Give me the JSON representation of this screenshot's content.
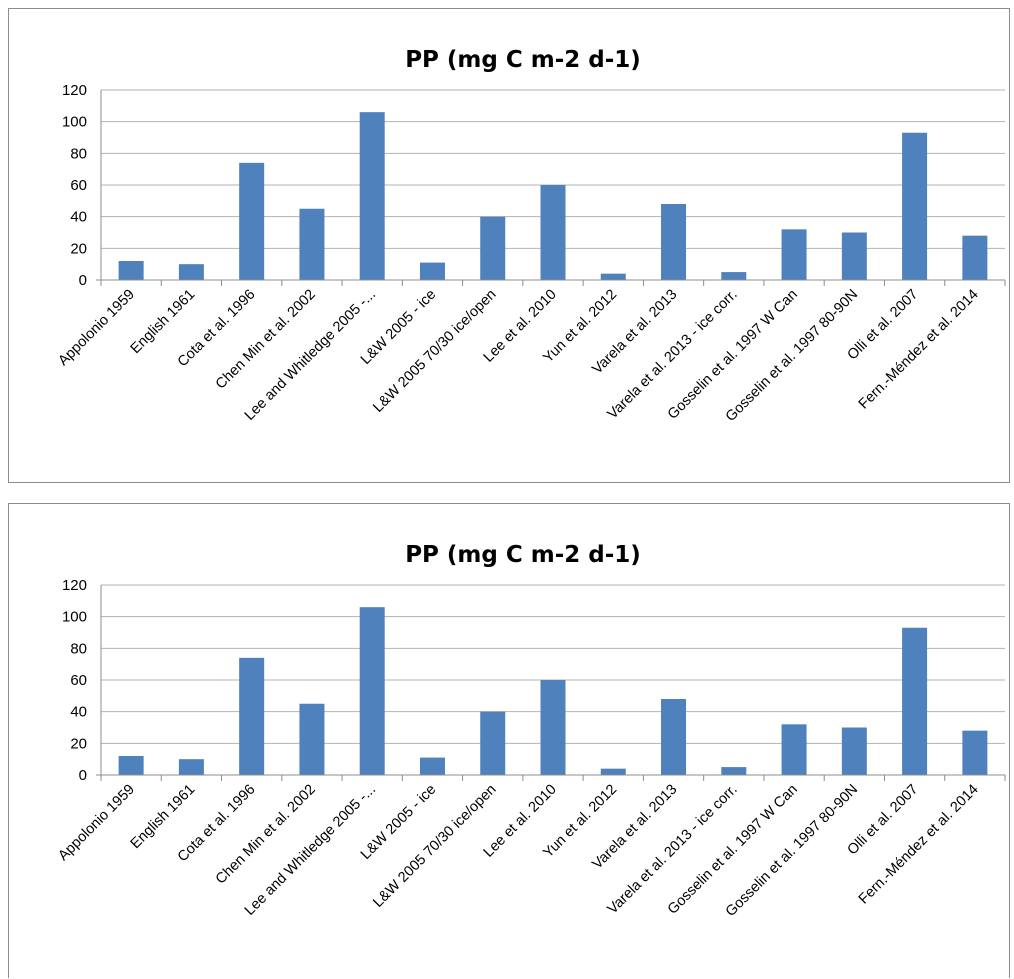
{
  "chart_data": [
    {
      "type": "bar",
      "title": "PP (mg C m-2 d-1)",
      "categories": [
        "Appolonio 1959",
        "English 1961",
        "Cota et al. 1996",
        "Chen Min et al. 2002",
        "Lee and Whitledge 2005 -...",
        "L&W 2005 - ice",
        "L&W 2005 70/30 ice/open",
        "Lee et al. 2010",
        "Yun et al. 2012",
        "Varela et al. 2013",
        "Varela et al. 2013 - ice corr.",
        "Gosselin et al. 1997 W Can",
        "Gosselin et al. 1997 80-90N",
        "Olli et al. 2007",
        "Fern.-Méndez et al. 2014"
      ],
      "values": [
        12,
        10,
        74,
        45,
        106,
        11,
        40,
        60,
        4,
        48,
        5,
        32,
        30,
        93,
        28
      ],
      "yticks": [
        0,
        20,
        40,
        60,
        80,
        100,
        120
      ],
      "ylim": [
        0,
        120
      ],
      "grid": true,
      "bar_color": "#4f81bd"
    },
    {
      "type": "bar",
      "title": "PP (mg C m-2 d-1)",
      "categories": [
        "Appolonio 1959",
        "English 1961",
        "Cota et al. 1996",
        "Chen Min et al. 2002",
        "Lee and Whitledge 2005 -...",
        "L&W 2005 - ice",
        "L&W 2005 70/30 ice/open",
        "Lee et al. 2010",
        "Yun et al. 2012",
        "Varela et al. 2013",
        "Varela et al. 2013 - ice corr.",
        "Gosselin et al. 1997 W Can",
        "Gosselin et al. 1997 80-90N",
        "Olli et al. 2007",
        "Fern.-Méndez et al. 2014"
      ],
      "values": [
        12,
        10,
        74,
        45,
        106,
        11,
        40,
        60,
        4,
        48,
        5,
        32,
        30,
        93,
        28
      ],
      "yticks": [
        0,
        20,
        40,
        60,
        80,
        100,
        120
      ],
      "ylim": [
        0,
        120
      ],
      "grid": true,
      "bar_color": "#4f81bd"
    }
  ]
}
